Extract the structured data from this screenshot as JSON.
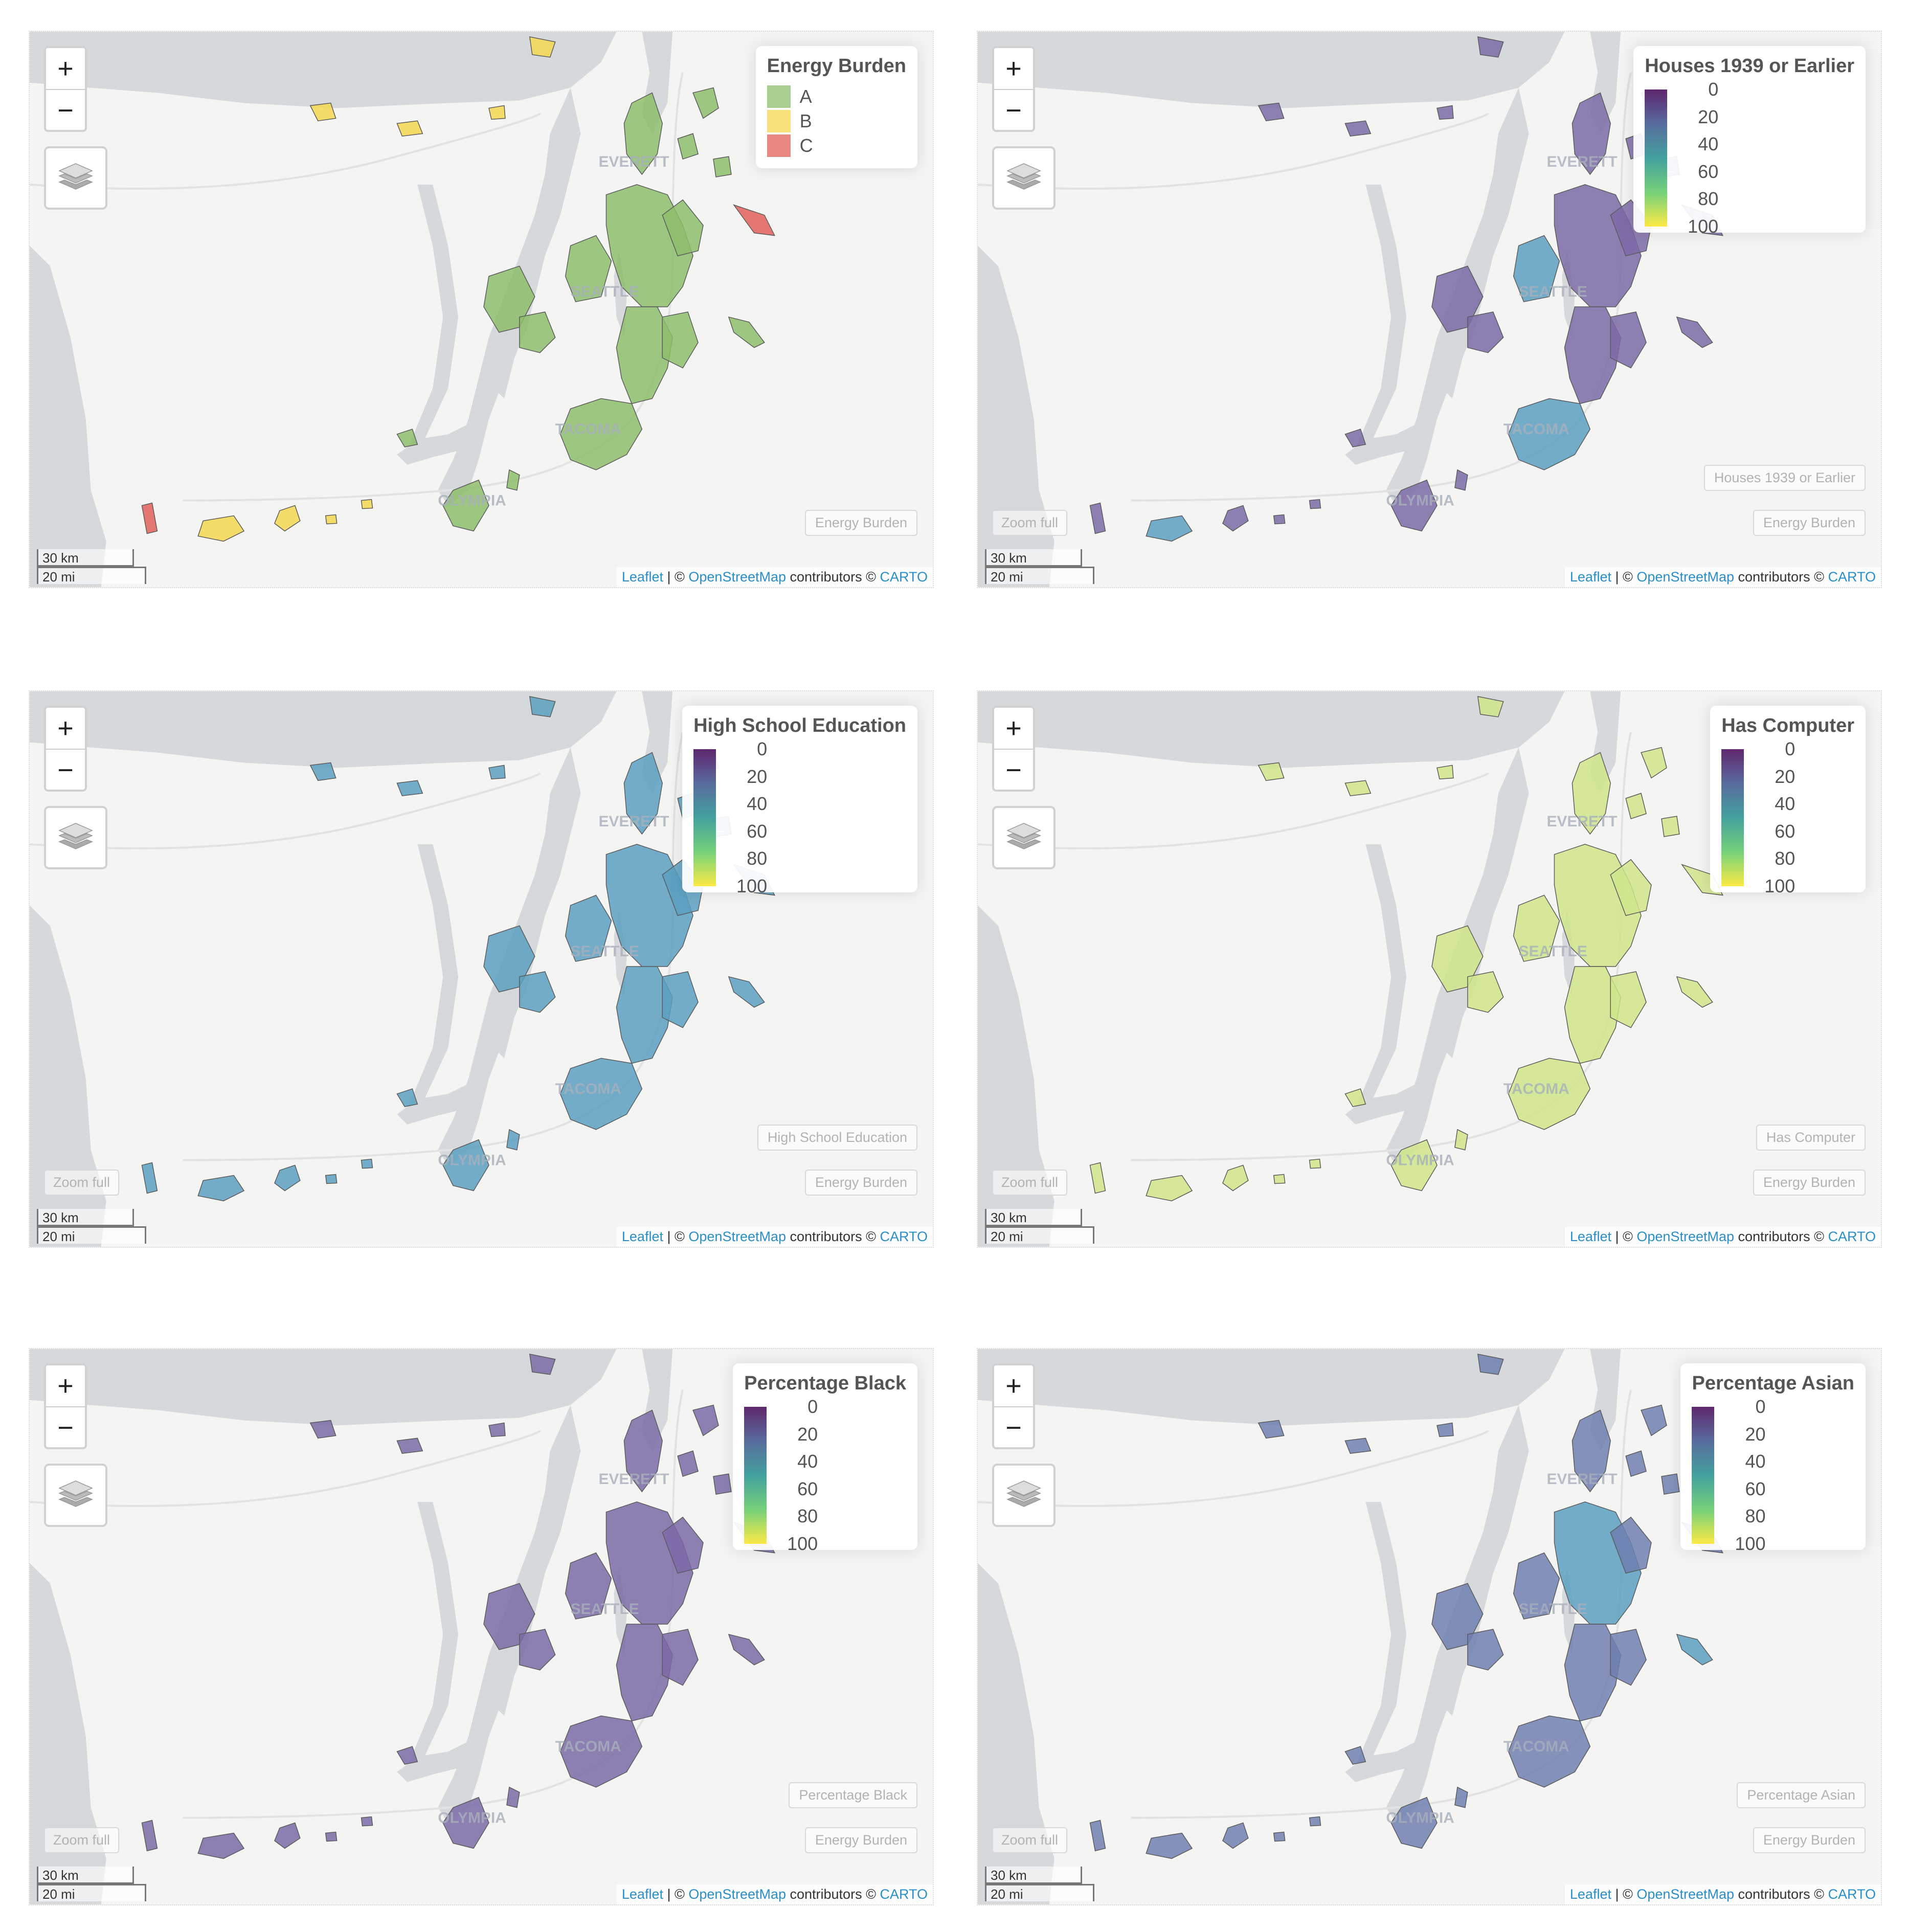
{
  "colors": {
    "land": "#f4f4f3",
    "water": "#d6d9dc",
    "energy_A": "#8dbd6b",
    "energy_B": "#f4d74f",
    "energy_C": "#e0605a",
    "purple": "#7b6aa6",
    "blue": "#5a9fbf",
    "teal": "#64b7b5",
    "lime": "#cfe58a",
    "viridis": [
      "#440154",
      "#3b528b",
      "#21908d",
      "#5dc963",
      "#fde725"
    ]
  },
  "controls": {
    "zoom_in": "+",
    "zoom_out": "−",
    "zoom_full": "Zoom full"
  },
  "scale": {
    "km": "30 km",
    "mi": "20 mi"
  },
  "attribution": {
    "leaflet": "Leaflet",
    "sep1": " | © ",
    "osm": "OpenStreetMap",
    "mid": " contributors © ",
    "carto": "CARTO"
  },
  "cities": {
    "everett": "EVERETT",
    "seattle": "SEATTLE",
    "tacoma": "TACOMA",
    "olympia": "OLYMPIA"
  },
  "panels": [
    {
      "legend_title": "Energy Burden",
      "legend_type": "categorical",
      "categories": [
        {
          "label": "A",
          "color": "#8dbd6b"
        },
        {
          "label": "B",
          "color": "#f4d74f"
        },
        {
          "label": "C",
          "color": "#e0605a"
        }
      ],
      "layer_buttons": [
        "Energy Burden"
      ],
      "show_zoom_full": false,
      "fill_color": "#8dbd6b"
    },
    {
      "legend_title": "Houses 1939 or Earlier",
      "legend_type": "continuous",
      "ticks": [
        "0",
        "20",
        "40",
        "60",
        "80",
        "100"
      ],
      "layer_buttons": [
        "Houses 1939 or Earlier",
        "Energy Burden"
      ],
      "show_zoom_full": true,
      "fill_color": "#7b6aa6"
    },
    {
      "legend_title": "High School Education",
      "legend_type": "continuous",
      "ticks": [
        "0",
        "20",
        "40",
        "60",
        "80",
        "100"
      ],
      "layer_buttons": [
        "High School Education",
        "Energy Burden"
      ],
      "show_zoom_full": true,
      "fill_color": "#5a9fbf"
    },
    {
      "legend_title": "Has Computer",
      "legend_type": "continuous",
      "ticks": [
        "0",
        "20",
        "40",
        "60",
        "80",
        "100"
      ],
      "layer_buttons": [
        "Has Computer",
        "Energy Burden"
      ],
      "show_zoom_full": true,
      "fill_color": "#cfe58a"
    },
    {
      "legend_title": "Percentage Black",
      "legend_type": "continuous",
      "ticks": [
        "0",
        "20",
        "40",
        "60",
        "80",
        "100"
      ],
      "layer_buttons": [
        "Percentage Black",
        "Energy Burden"
      ],
      "show_zoom_full": true,
      "fill_color": "#7b6aa6"
    },
    {
      "legend_title": "Percentage Asian",
      "legend_type": "continuous",
      "ticks": [
        "0",
        "20",
        "40",
        "60",
        "80",
        "100"
      ],
      "layer_buttons": [
        "Percentage Asian",
        "Energy Burden"
      ],
      "show_zoom_full": true,
      "fill_color": "#6f7fb0"
    }
  ]
}
